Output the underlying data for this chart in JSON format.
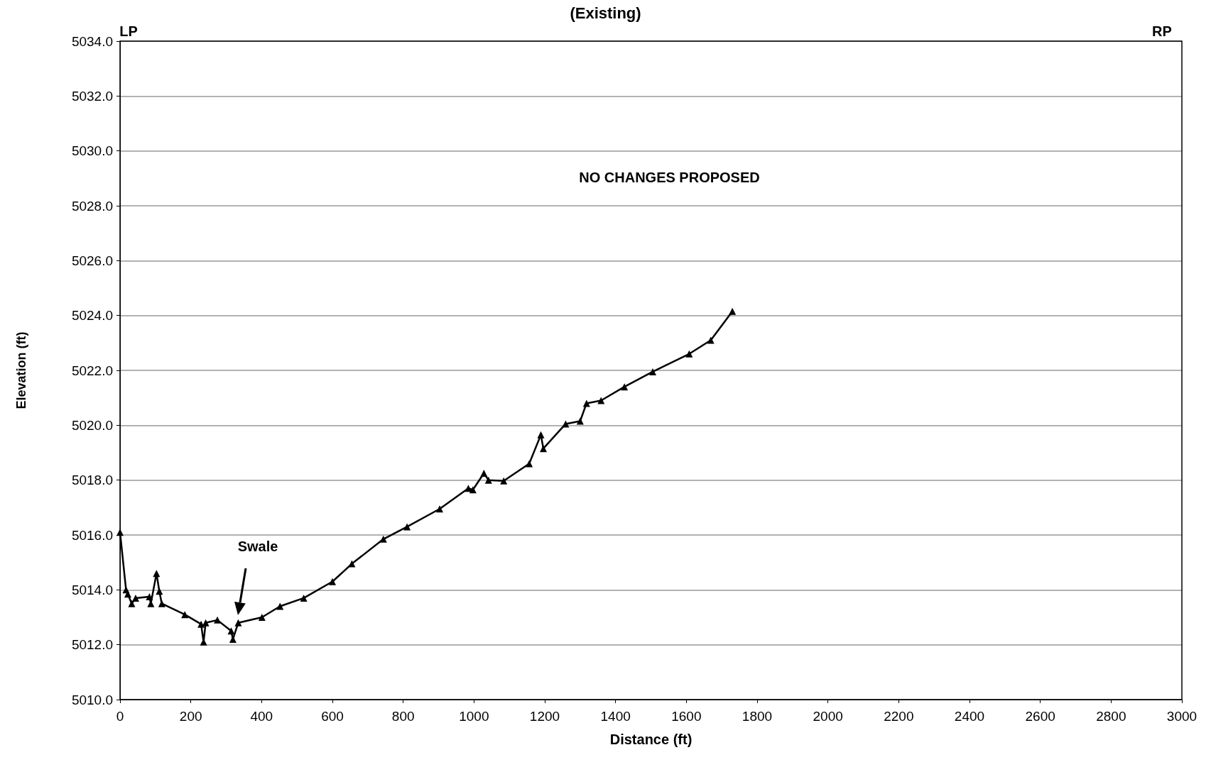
{
  "chart_data": {
    "type": "line",
    "title": "(Existing)",
    "xlabel": "Distance (ft)",
    "ylabel": "Elevation (ft)",
    "annotations": [
      "LP",
      "RP",
      "NO CHANGES PROPOSED",
      "Swale"
    ],
    "x": [
      0,
      17,
      22,
      33,
      44,
      83,
      87,
      103,
      111,
      118,
      183,
      229,
      236,
      242,
      275,
      314,
      319,
      334,
      401,
      452,
      519,
      600,
      655,
      744,
      811,
      903,
      984,
      997,
      1028,
      1041,
      1084,
      1156,
      1189,
      1196,
      1259,
      1300,
      1318,
      1359,
      1425,
      1505,
      1608,
      1669,
      1730
    ],
    "series": [
      {
        "color": "#000000",
        "values": [
          5016.1,
          5014.0,
          5013.85,
          5013.5,
          5013.7,
          5013.75,
          5013.5,
          5014.6,
          5013.95,
          5013.5,
          5013.1,
          5012.75,
          5012.1,
          5012.8,
          5012.9,
          5012.5,
          5012.2,
          5012.8,
          5013.0,
          5013.4,
          5013.7,
          5014.3,
          5014.95,
          5015.85,
          5016.3,
          5016.95,
          5017.7,
          5017.65,
          5018.25,
          5018.0,
          5017.97,
          5018.6,
          5019.65,
          5019.15,
          5020.05,
          5020.15,
          5020.8,
          5020.9,
          5021.4,
          5021.95,
          5022.6,
          5023.1,
          5024.15
        ]
      }
    ],
    "xlim": [
      0,
      3000
    ],
    "xticks": [
      0,
      200,
      400,
      600,
      800,
      1000,
      1200,
      1400,
      1600,
      1800,
      2000,
      2200,
      2400,
      2600,
      2800,
      3000
    ],
    "ylim": [
      5010,
      5034
    ],
    "yticks": [
      {
        "value": 5010,
        "label": "5010.0"
      },
      {
        "value": 5012,
        "label": "5012.0"
      },
      {
        "value": 5014,
        "label": "5014.0"
      },
      {
        "value": 5016,
        "label": "5016.0"
      },
      {
        "value": 5018,
        "label": "5018.0"
      },
      {
        "value": 5020,
        "label": "5020.0"
      },
      {
        "value": 5022,
        "label": "5022.0"
      },
      {
        "value": 5024,
        "label": "5024.0"
      },
      {
        "value": 5026,
        "label": "5026.0"
      },
      {
        "value": 5028,
        "label": "5028.0"
      },
      {
        "value": 5030,
        "label": "5030.0"
      },
      {
        "value": 5032,
        "label": "5032.0"
      },
      {
        "value": 5034,
        "label": "5034.0"
      }
    ],
    "grid": "y",
    "marker": "triangle",
    "line_style": "solid"
  }
}
